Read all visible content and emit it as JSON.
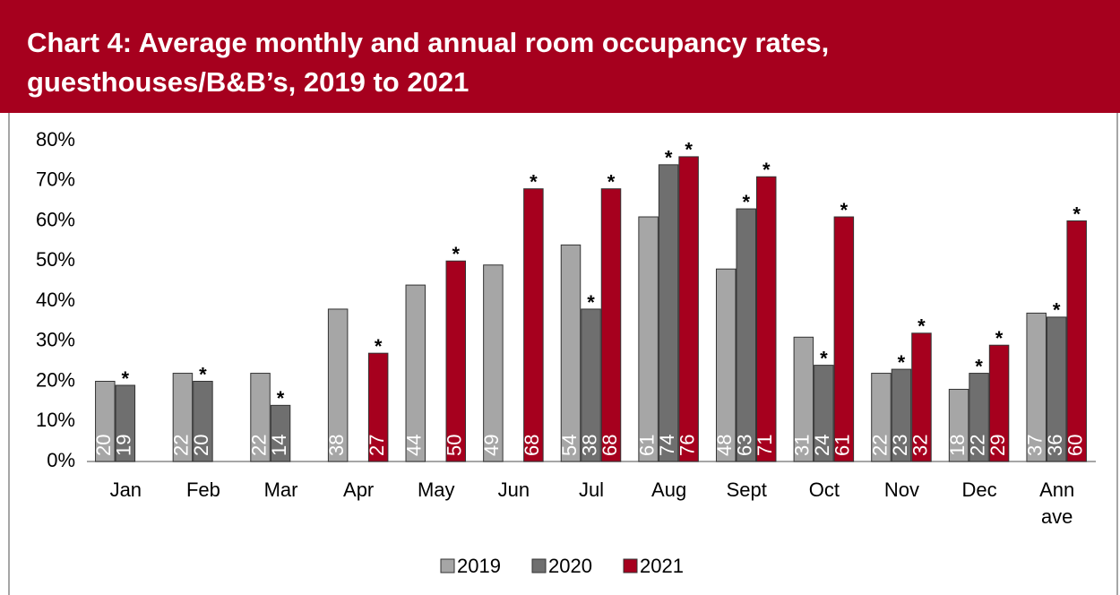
{
  "chart_data": {
    "type": "bar",
    "title": "Chart 4: Average monthly and annual room occupancy rates, guesthouses/B&B’s, 2019 to 2021",
    "categories": [
      "Jan",
      "Feb",
      "Mar",
      "Apr",
      "May",
      "Jun",
      "Jul",
      "Aug",
      "Sept",
      "Oct",
      "Nov",
      "Dec",
      "Ann ave"
    ],
    "series": [
      {
        "name": "2019",
        "color": "#a6a6a6",
        "values": [
          20,
          22,
          22,
          38,
          44,
          49,
          54,
          61,
          48,
          31,
          22,
          18,
          37
        ]
      },
      {
        "name": "2020",
        "color": "#6f6f6f",
        "annotation": "*",
        "values": [
          19,
          20,
          14,
          null,
          null,
          null,
          38,
          74,
          63,
          24,
          23,
          22,
          36
        ]
      },
      {
        "name": "2021",
        "color": "#a6001e",
        "annotation": "*",
        "values": [
          null,
          null,
          null,
          27,
          50,
          68,
          68,
          76,
          71,
          61,
          32,
          29,
          60
        ]
      }
    ],
    "ylim": [
      0,
      80
    ],
    "yticks": [
      {
        "value": 0,
        "label": "0%"
      },
      {
        "value": 10,
        "label": "10%"
      },
      {
        "value": 20,
        "label": "20%"
      },
      {
        "value": 30,
        "label": "30%"
      },
      {
        "value": 40,
        "label": "40%"
      },
      {
        "value": 50,
        "label": "50%"
      },
      {
        "value": 60,
        "label": "60%"
      },
      {
        "value": 70,
        "label": "70%"
      },
      {
        "value": 80,
        "label": "80%"
      }
    ],
    "legend": "bottom"
  }
}
